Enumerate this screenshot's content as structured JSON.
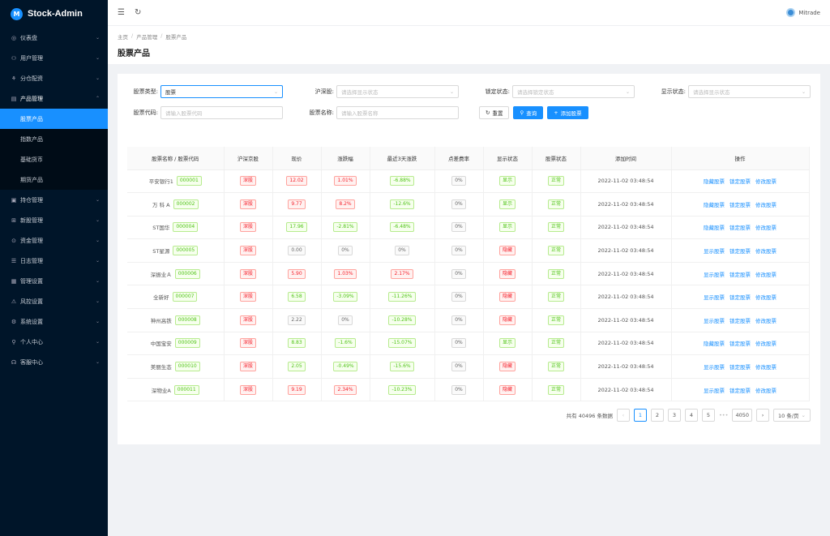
{
  "brand": {
    "name": "Stock-Admin",
    "logo": "M"
  },
  "sidebar": {
    "items": [
      {
        "label": "仪表盘",
        "icon": "dashboard-icon",
        "glyph": "◎",
        "arrow": "⌄"
      },
      {
        "label": "用户管理",
        "icon": "user-icon",
        "glyph": "⚇",
        "arrow": "⌄"
      },
      {
        "label": "分仓配资",
        "icon": "split-icon",
        "glyph": "⚘",
        "arrow": "⌄"
      },
      {
        "label": "产品管理",
        "icon": "chart-icon",
        "glyph": "▤",
        "arrow": "⌃",
        "open": true,
        "children": [
          {
            "label": "股票产品",
            "active": true
          },
          {
            "label": "指数产品"
          },
          {
            "label": "基础货币"
          },
          {
            "label": "期货产品"
          }
        ]
      },
      {
        "label": "持仓管理",
        "icon": "position-icon",
        "glyph": "▣",
        "arrow": "⌄"
      },
      {
        "label": "新股管理",
        "icon": "ipo-icon",
        "glyph": "⊞",
        "arrow": "⌄"
      },
      {
        "label": "资金管理",
        "icon": "fund-icon",
        "glyph": "⊙",
        "arrow": "⌄"
      },
      {
        "label": "日志管理",
        "icon": "log-icon",
        "glyph": "☰",
        "arrow": "⌄"
      },
      {
        "label": "管理设置",
        "icon": "settings-icon",
        "glyph": "▦",
        "arrow": "⌄"
      },
      {
        "label": "风控设置",
        "icon": "warning-icon",
        "glyph": "⚠",
        "arrow": "⌄"
      },
      {
        "label": "系统设置",
        "icon": "gear-icon",
        "glyph": "⚙",
        "arrow": "⌄"
      },
      {
        "label": "个人中心",
        "icon": "person-icon",
        "glyph": "⚲",
        "arrow": "⌄"
      },
      {
        "label": "客服中心",
        "icon": "headset-icon",
        "glyph": "☊",
        "arrow": "⌄"
      }
    ]
  },
  "topbar": {
    "collapse_glyph": "☰",
    "refresh_glyph": "↻",
    "username": "Mitrade"
  },
  "breadcrumb": [
    "主页",
    "产品管理",
    "股票产品"
  ],
  "breadcrumb_sep": "/",
  "page_title": "股票产品",
  "filters": {
    "stock_type": {
      "label": "股票类型:",
      "value": "股票"
    },
    "hs": {
      "label": "沪深股:",
      "placeholder": "请选择显示状态"
    },
    "lock": {
      "label": "锁定状态:",
      "placeholder": "请选择锁定状态"
    },
    "show": {
      "label": "显示状态:",
      "placeholder": "请选择显示状态"
    },
    "code": {
      "label": "股票代码:",
      "placeholder": "请输入股票代码"
    },
    "name": {
      "label": "股票名称:",
      "placeholder": "请输入股票名称"
    },
    "reset": "重置",
    "search": "查询",
    "add": "添加股票"
  },
  "table": {
    "columns": [
      "股票名称 / 股票代码",
      "沪深京股",
      "现价",
      "涨跌幅",
      "最近3天涨跌",
      "点差费率",
      "显示状态",
      "股票状态",
      "添加时间",
      "操作"
    ],
    "rows": [
      {
        "name": "平安银行1",
        "code": "000001",
        "market": "深股",
        "price": "12.02",
        "change": "1.01%",
        "change3": "-6.88%",
        "spread": "0%",
        "show": "显示",
        "status": "正常",
        "time": "2022-11-02 03:48:54",
        "op1": "隐藏股票",
        "op2": "锁定股票",
        "op3": "修改股票"
      },
      {
        "name": "万 科 A",
        "code": "000002",
        "market": "深股",
        "price": "9.77",
        "change": "8.2%",
        "change3": "-12.6%",
        "spread": "0%",
        "show": "显示",
        "status": "正常",
        "time": "2022-11-02 03:48:54",
        "op1": "隐藏股票",
        "op2": "锁定股票",
        "op3": "修改股票"
      },
      {
        "name": "ST国华",
        "code": "000004",
        "market": "深股",
        "price": "17.96",
        "change": "-2.81%",
        "change3": "-6.48%",
        "spread": "0%",
        "show": "显示",
        "status": "正常",
        "time": "2022-11-02 03:48:54",
        "op1": "隐藏股票",
        "op2": "锁定股票",
        "op3": "修改股票"
      },
      {
        "name": "ST星源",
        "code": "000005",
        "market": "深股",
        "price": "0.00",
        "change": "0%",
        "change3": "0%",
        "spread": "0%",
        "show": "隐藏",
        "status": "正常",
        "time": "2022-11-02 03:48:54",
        "op1": "显示股票",
        "op2": "锁定股票",
        "op3": "修改股票"
      },
      {
        "name": "深振业Ａ",
        "code": "000006",
        "market": "深股",
        "price": "5.90",
        "change": "1.03%",
        "change3": "2.17%",
        "spread": "0%",
        "show": "隐藏",
        "status": "正常",
        "time": "2022-11-02 03:48:54",
        "op1": "显示股票",
        "op2": "锁定股票",
        "op3": "修改股票"
      },
      {
        "name": "全新好",
        "code": "000007",
        "market": "深股",
        "price": "6.58",
        "change": "-3.09%",
        "change3": "-11.26%",
        "spread": "0%",
        "show": "隐藏",
        "status": "正常",
        "time": "2022-11-02 03:48:54",
        "op1": "显示股票",
        "op2": "锁定股票",
        "op3": "修改股票"
      },
      {
        "name": "神州高铁",
        "code": "000008",
        "market": "深股",
        "price": "2.22",
        "change": "0%",
        "change3": "-10.28%",
        "spread": "0%",
        "show": "隐藏",
        "status": "正常",
        "time": "2022-11-02 03:48:54",
        "op1": "显示股票",
        "op2": "锁定股票",
        "op3": "修改股票"
      },
      {
        "name": "中国宝安",
        "code": "000009",
        "market": "深股",
        "price": "8.83",
        "change": "-1.6%",
        "change3": "-15.07%",
        "spread": "0%",
        "show": "显示",
        "status": "正常",
        "time": "2022-11-02 03:48:54",
        "op1": "隐藏股票",
        "op2": "锁定股票",
        "op3": "修改股票"
      },
      {
        "name": "美丽生态",
        "code": "000010",
        "market": "深股",
        "price": "2.05",
        "change": "-0.49%",
        "change3": "-15.6%",
        "spread": "0%",
        "show": "隐藏",
        "status": "正常",
        "time": "2022-11-02 03:48:54",
        "op1": "显示股票",
        "op2": "锁定股票",
        "op3": "修改股票"
      },
      {
        "name": "深物业A",
        "code": "000011",
        "market": "深股",
        "price": "9.19",
        "change": "2.34%",
        "change3": "-10.23%",
        "spread": "0%",
        "show": "隐藏",
        "status": "正常",
        "time": "2022-11-02 03:48:54",
        "op1": "显示股票",
        "op2": "锁定股票",
        "op3": "修改股票"
      }
    ]
  },
  "pagination": {
    "total_text": "共有 40496 条数据",
    "prev": "‹",
    "next": "›",
    "pages": [
      "1",
      "2",
      "3",
      "4",
      "5"
    ],
    "ellipsis": "•••",
    "last": "4050",
    "page_size": "10 条/页"
  },
  "colors": {
    "sidebar_bg": "#001529",
    "accent": "#1890ff",
    "up": "#f5222d",
    "down": "#52c41a"
  }
}
